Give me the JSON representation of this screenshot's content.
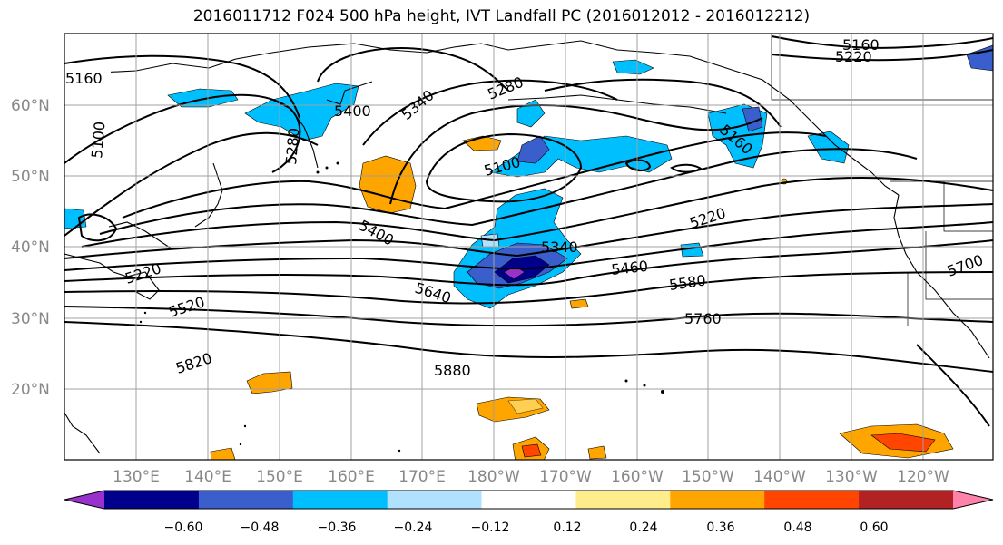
{
  "title": "2016011712 F024 500 hPa height, IVT Landfall PC (2016012012 - 2016012212)",
  "lat_labels": [
    "60°N",
    "50°N",
    "40°N",
    "30°N",
    "20°N"
  ],
  "lon_labels": [
    "130°E",
    "140°E",
    "150°E",
    "160°E",
    "170°E",
    "180°W",
    "170°W",
    "160°W",
    "150°W",
    "140°W",
    "130°W",
    "120°W"
  ],
  "contour_labels": [
    "5160",
    "5100",
    "5280",
    "5400",
    "5340",
    "5280",
    "5160",
    "5220",
    "5160",
    "5100",
    "5220",
    "5400",
    "5340",
    "5460",
    "5580",
    "5700",
    "5640",
    "5520",
    "5220",
    "5760",
    "5820",
    "5880"
  ],
  "colorbar": {
    "ticks": [
      "−0.60",
      "−0.48",
      "−0.36",
      "−0.24",
      "−0.12",
      "0.12",
      "0.24",
      "0.36",
      "0.48",
      "0.60"
    ],
    "colors": [
      "#9932cc",
      "#00008b",
      "#3a5fcd",
      "#00bfff",
      "#b0e2ff",
      "#ffffff",
      "#ffec8b",
      "#ffa500",
      "#ff4500",
      "#b22222",
      "#ff82ab"
    ]
  }
}
